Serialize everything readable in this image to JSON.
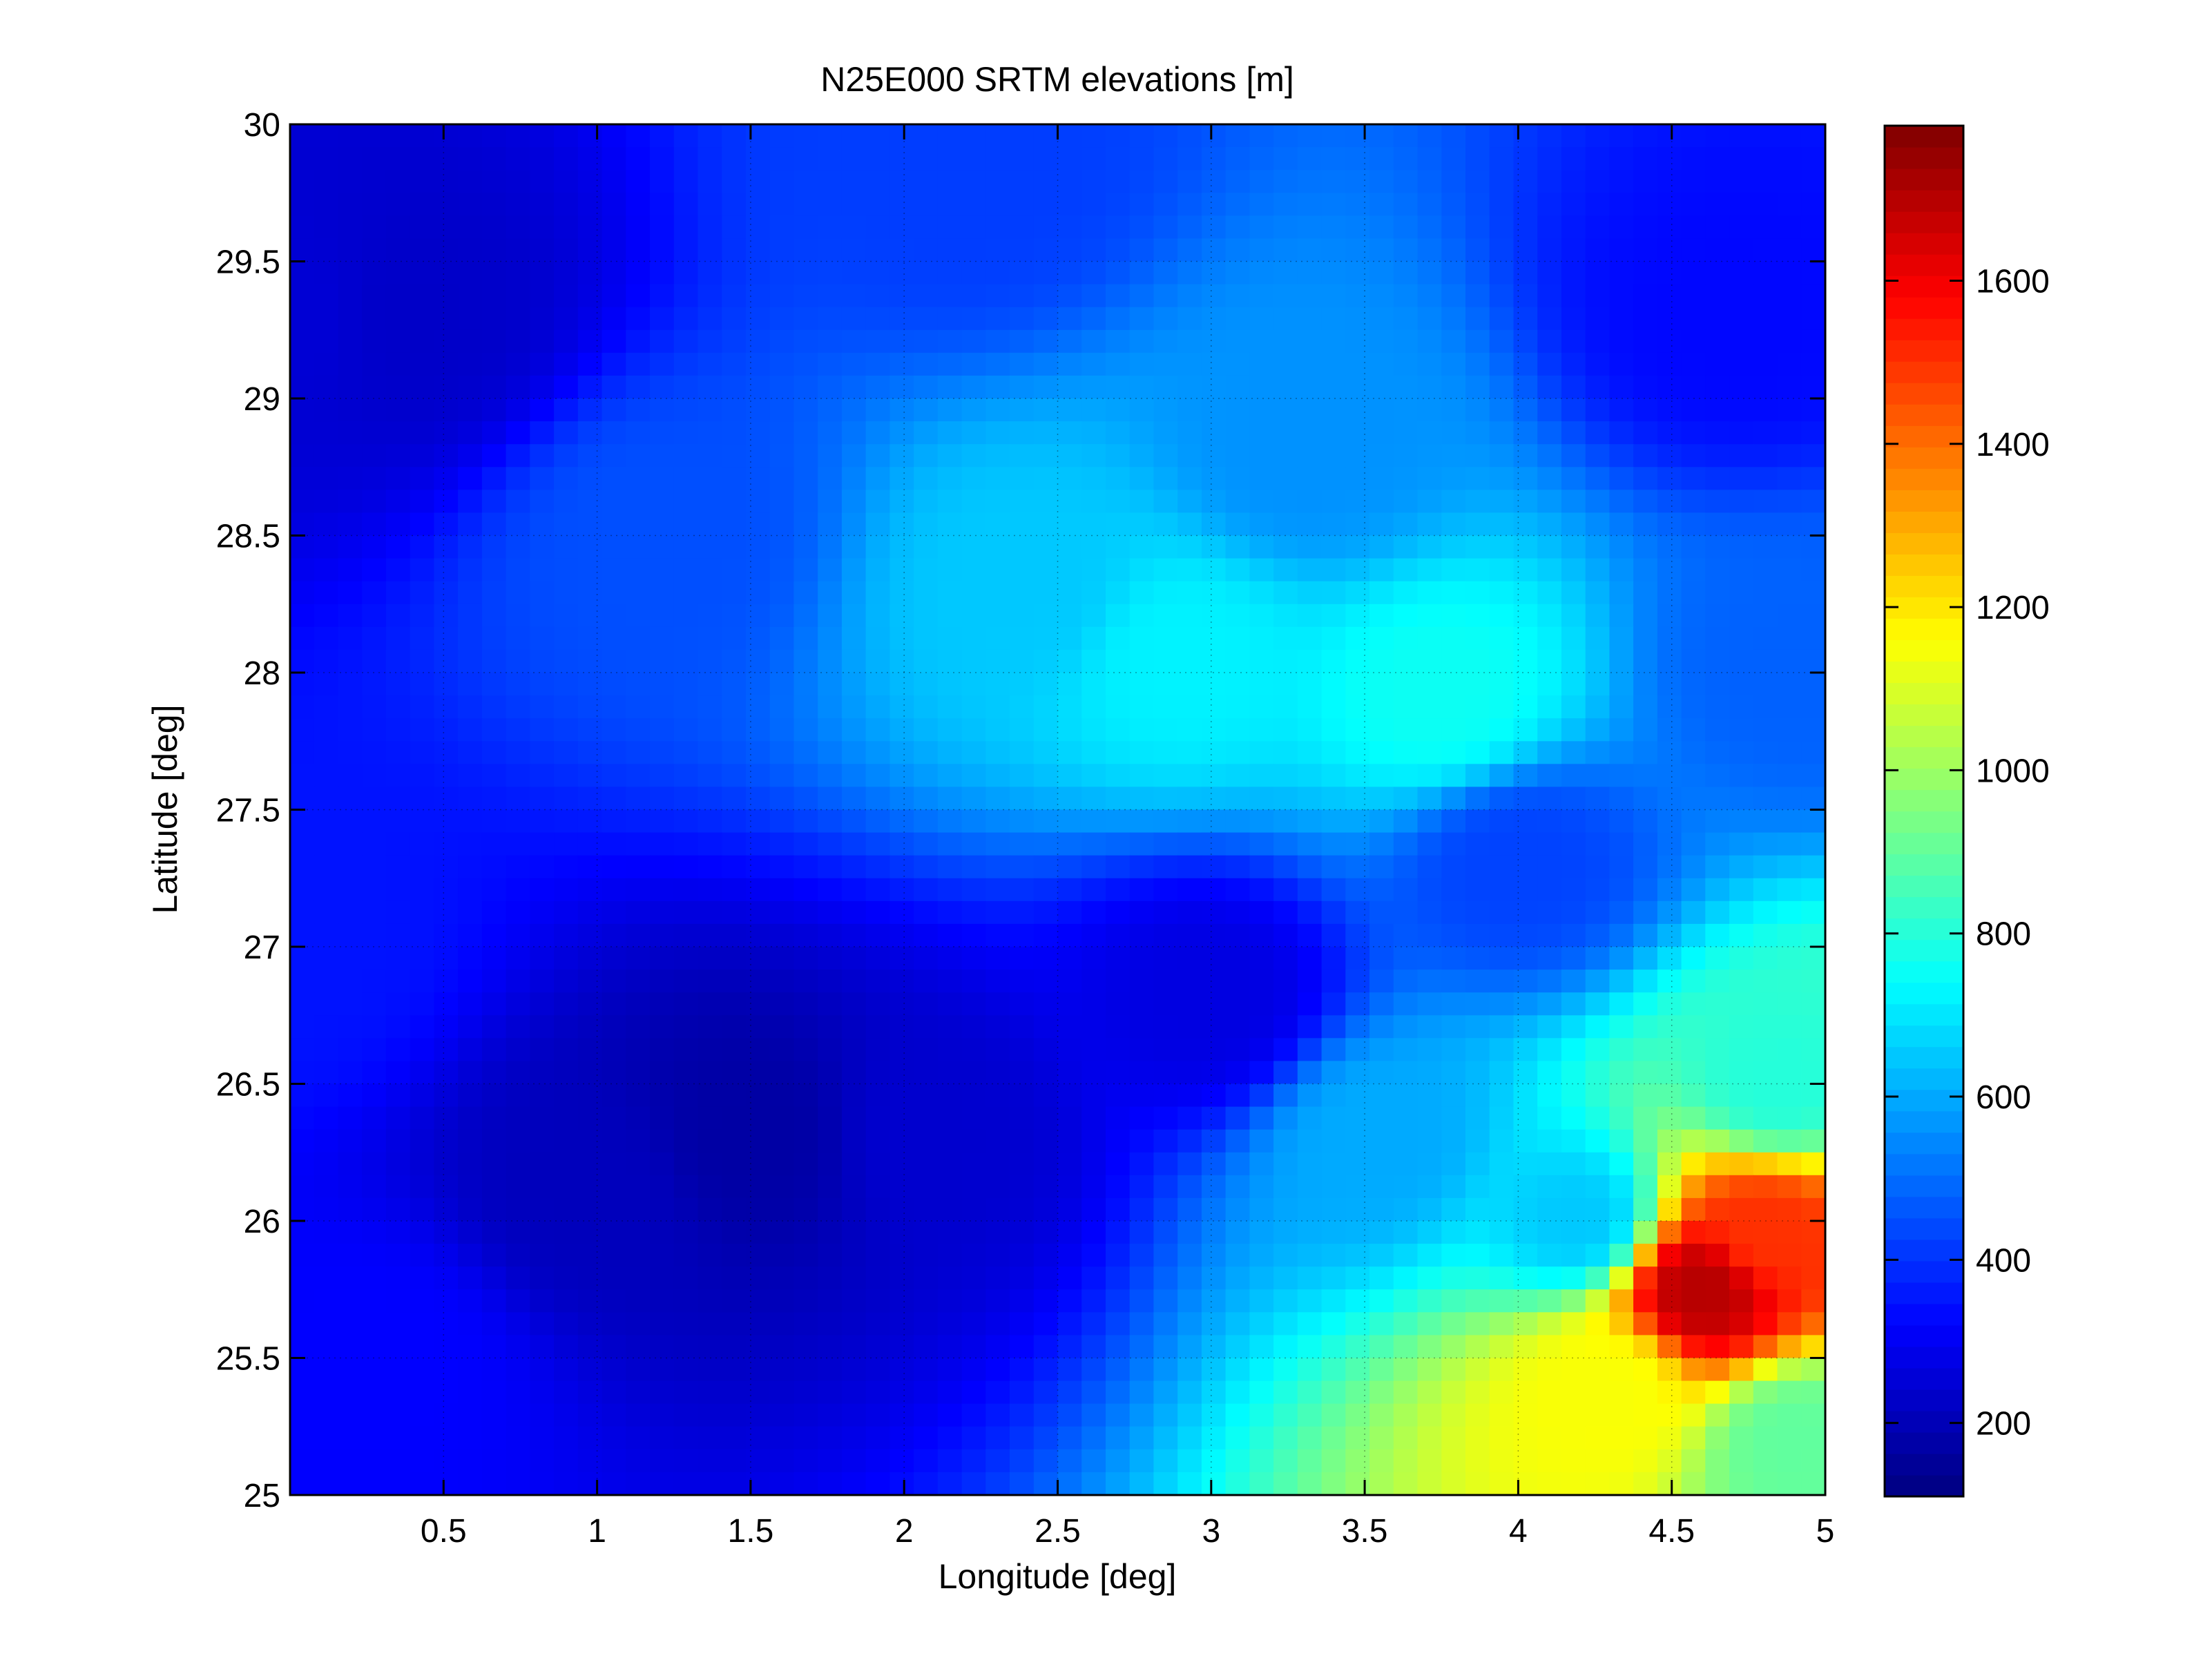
{
  "chart_data": {
    "type": "heatmap",
    "title": "N25E000 SRTM elevations [m]",
    "xlabel": "Longitude [deg]",
    "ylabel": "Latitude [deg]",
    "xlim": [
      0,
      5
    ],
    "ylim": [
      25,
      30
    ],
    "xticks": [
      0.5,
      1,
      1.5,
      2,
      2.5,
      3,
      3.5,
      4,
      4.5,
      5
    ],
    "xtick_labels": [
      "0.5",
      "1",
      "1.5",
      "2",
      "2.5",
      "3",
      "3.5",
      "4",
      "4.5",
      "5"
    ],
    "yticks": [
      25,
      25.5,
      26,
      26.5,
      27,
      27.5,
      28,
      28.5,
      29,
      29.5,
      30
    ],
    "ytick_labels": [
      "25",
      "25.5",
      "26",
      "26.5",
      "27",
      "27.5",
      "28",
      "28.5",
      "29",
      "29.5",
      "30"
    ],
    "grid": true,
    "colormap": "jet",
    "colorbar": {
      "range": [
        110,
        1790
      ],
      "ticks": [
        200,
        400,
        600,
        800,
        1000,
        1200,
        1400,
        1600
      ],
      "tick_labels": [
        "200",
        "400",
        "600",
        "800",
        "1000",
        "1200",
        "1400",
        "1600"
      ]
    },
    "elevation_features": [
      {
        "lon": 0.0,
        "lat": 29.3,
        "elevation": 250
      },
      {
        "lon": 0.4,
        "lat": 29.3,
        "elevation": 230
      },
      {
        "lon": 1.5,
        "lat": 26.3,
        "elevation": 170
      },
      {
        "lon": 1.0,
        "lat": 26.1,
        "elevation": 210
      },
      {
        "lon": 2.1,
        "lat": 26.3,
        "elevation": 240
      },
      {
        "lon": 0.3,
        "lat": 25.5,
        "elevation": 320
      },
      {
        "lon": 0.0,
        "lat": 27.0,
        "elevation": 350
      },
      {
        "lon": 1.2,
        "lat": 28.5,
        "elevation": 450
      },
      {
        "lon": 2.4,
        "lat": 28.3,
        "elevation": 650
      },
      {
        "lon": 2.9,
        "lat": 28.05,
        "elevation": 720
      },
      {
        "lon": 3.75,
        "lat": 27.9,
        "elevation": 760
      },
      {
        "lon": 3.3,
        "lat": 28.8,
        "elevation": 560
      },
      {
        "lon": 2.2,
        "lat": 29.8,
        "elevation": 420
      },
      {
        "lon": 4.7,
        "lat": 29.3,
        "elevation": 330
      },
      {
        "lon": 4.9,
        "lat": 28.0,
        "elevation": 480
      },
      {
        "lon": 4.0,
        "lat": 27.3,
        "elevation": 430
      },
      {
        "lon": 3.0,
        "lat": 26.8,
        "elevation": 270
      },
      {
        "lon": 4.3,
        "lat": 25.4,
        "elevation": 1150
      },
      {
        "lon": 4.6,
        "lat": 25.75,
        "elevation": 1700
      },
      {
        "lon": 4.8,
        "lat": 25.95,
        "elevation": 1500
      },
      {
        "lon": 4.85,
        "lat": 26.5,
        "elevation": 800
      },
      {
        "lon": 4.9,
        "lat": 25.2,
        "elevation": 900
      },
      {
        "lon": 4.2,
        "lat": 26.0,
        "elevation": 650
      },
      {
        "lon": 3.55,
        "lat": 26.3,
        "elevation": 600
      }
    ]
  }
}
